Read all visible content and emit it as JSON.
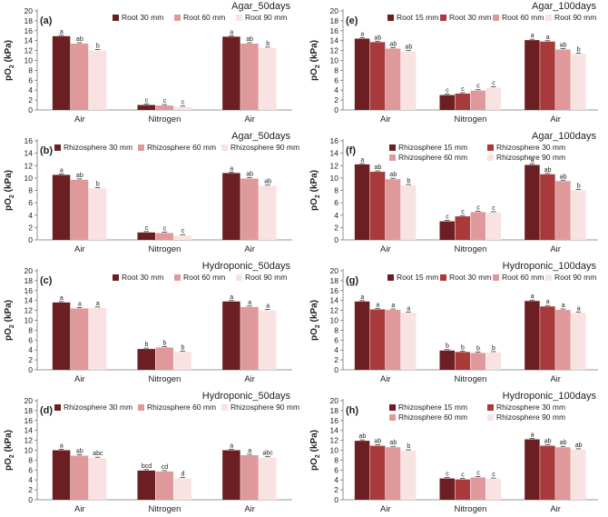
{
  "figure": {
    "colors": {
      "s1": "#6b1f22",
      "s2": "#a83a3c",
      "s3": "#e0999b",
      "s4": "#f8e2e2"
    },
    "axis_label_main": "pO",
    "axis_label_sub": "2",
    "axis_label_unit": " (kPa)"
  },
  "chart_data": [
    {
      "panel": "(a)",
      "title": "Agar_50days",
      "type": "bar",
      "categories": [
        "Air",
        "Nitrogen",
        "Air"
      ],
      "ylim": [
        0,
        20
      ],
      "yticks": [
        0,
        2,
        4,
        6,
        8,
        10,
        12,
        14,
        16,
        18,
        20
      ],
      "legend_rows": [
        [
          0,
          1,
          2
        ]
      ],
      "series": [
        {
          "name": "Root 30 mm",
          "color": "s1",
          "values": [
            14.9,
            1.0,
            14.8
          ],
          "labels": [
            "a",
            "c",
            "a"
          ]
        },
        {
          "name": "Root 60 mm",
          "color": "s3",
          "values": [
            13.4,
            0.9,
            13.4
          ],
          "labels": [
            "ab",
            "c",
            "ab"
          ]
        },
        {
          "name": "Root 90 mm",
          "color": "s4",
          "values": [
            12.0,
            0.6,
            12.5
          ],
          "labels": [
            "b",
            "c",
            "b"
          ]
        }
      ]
    },
    {
      "panel": "(e)",
      "title": "Agar_100days",
      "type": "bar",
      "categories": [
        "Air",
        "Nitrogen",
        "Air"
      ],
      "ylim": [
        0,
        20
      ],
      "yticks": [
        0,
        2,
        4,
        6,
        8,
        10,
        12,
        14,
        16,
        18,
        20
      ],
      "legend_rows": [
        [
          0,
          1,
          2,
          3
        ]
      ],
      "series": [
        {
          "name": "Root 15 mm",
          "color": "s1",
          "values": [
            14.4,
            3.0,
            14.1
          ],
          "labels": [
            "a",
            "c",
            "a"
          ]
        },
        {
          "name": "Root 30 mm",
          "color": "s2",
          "values": [
            13.7,
            3.3,
            13.8
          ],
          "labels": [
            "ab",
            "c",
            "a"
          ]
        },
        {
          "name": "Root 60 mm",
          "color": "s3",
          "values": [
            12.4,
            3.9,
            12.2
          ],
          "labels": [
            "ab",
            "c",
            "ab"
          ]
        },
        {
          "name": "Root 90 mm",
          "color": "s4",
          "values": [
            11.8,
            4.5,
            11.3
          ],
          "labels": [
            "ab",
            "c",
            "b"
          ]
        }
      ]
    },
    {
      "panel": "(b)",
      "title": "Agar_50days",
      "type": "bar",
      "categories": [
        "Air",
        "Nitrogen",
        "Air"
      ],
      "ylim": [
        0,
        16
      ],
      "yticks": [
        0,
        2,
        4,
        6,
        8,
        10,
        12,
        14,
        16
      ],
      "legend_rows": [
        [
          0,
          1,
          2
        ]
      ],
      "series": [
        {
          "name": "Rhizosphere 30 mm",
          "color": "s1",
          "values": [
            10.5,
            1.2,
            10.8
          ],
          "labels": [
            "a",
            "c",
            "a"
          ]
        },
        {
          "name": "Rhizosphere 60 mm",
          "color": "s3",
          "values": [
            9.7,
            1.1,
            9.9
          ],
          "labels": [
            "ab",
            "c",
            "ab"
          ]
        },
        {
          "name": "Rhizosphere 90 mm",
          "color": "s4",
          "values": [
            8.3,
            0.7,
            8.7
          ],
          "labels": [
            "b",
            "c",
            "ab"
          ]
        }
      ]
    },
    {
      "panel": "(f)",
      "title": "Agar_100days",
      "type": "bar",
      "categories": [
        "Air",
        "Nitrogen",
        "Air"
      ],
      "ylim": [
        0,
        16
      ],
      "yticks": [
        0,
        2,
        4,
        6,
        8,
        10,
        12,
        14,
        16
      ],
      "legend_rows": [
        [
          0,
          1
        ],
        [
          2,
          3
        ]
      ],
      "series": [
        {
          "name": "Rhizosphere 15 mm",
          "color": "s1",
          "values": [
            12.2,
            3.0,
            12.1
          ],
          "labels": [
            "a",
            "c",
            "a"
          ]
        },
        {
          "name": "Rhizosphere 30 mm",
          "color": "s2",
          "values": [
            11.0,
            3.8,
            10.6
          ],
          "labels": [
            "ab",
            "c",
            "ab"
          ]
        },
        {
          "name": "Rhizosphere 60 mm",
          "color": "s3",
          "values": [
            9.8,
            4.5,
            9.5
          ],
          "labels": [
            "ab",
            "c",
            "ab"
          ]
        },
        {
          "name": "Rhizosphere 90 mm",
          "color": "s4",
          "values": [
            8.8,
            4.4,
            8.0
          ],
          "labels": [
            "b",
            "c",
            "b"
          ]
        }
      ]
    },
    {
      "panel": "(c)",
      "title": "Hydroponic_50days",
      "type": "bar",
      "categories": [
        "Air",
        "Nitrogen",
        "Air"
      ],
      "ylim": [
        0,
        20
      ],
      "yticks": [
        0,
        2,
        4,
        6,
        8,
        10,
        12,
        14,
        16,
        18,
        20
      ],
      "legend_rows": [
        [
          0,
          1,
          2
        ]
      ],
      "series": [
        {
          "name": "Root 30 mm",
          "color": "s1",
          "values": [
            13.6,
            4.2,
            13.8
          ],
          "labels": [
            "a",
            "b",
            "a"
          ]
        },
        {
          "name": "Root 60 mm",
          "color": "s3",
          "values": [
            12.4,
            4.5,
            12.7
          ],
          "labels": [
            "a",
            "b",
            "a"
          ]
        },
        {
          "name": "Root 90 mm",
          "color": "s4",
          "values": [
            12.5,
            3.6,
            12.0
          ],
          "labels": [
            "a",
            "b",
            "a"
          ]
        }
      ]
    },
    {
      "panel": "(g)",
      "title": "Hydroponic_100days",
      "type": "bar",
      "categories": [
        "Air",
        "Nitrogen",
        "Air"
      ],
      "ylim": [
        0,
        20
      ],
      "yticks": [
        0,
        2,
        4,
        6,
        8,
        10,
        12,
        14,
        16,
        18,
        20
      ],
      "legend_rows": [
        [
          0,
          1,
          2,
          3
        ]
      ],
      "series": [
        {
          "name": "Root 15 mm",
          "color": "s1",
          "values": [
            13.8,
            3.9,
            13.9
          ],
          "labels": [
            "a",
            "b",
            "a"
          ]
        },
        {
          "name": "Root 30 mm",
          "color": "s2",
          "values": [
            12.2,
            3.6,
            12.8
          ],
          "labels": [
            "a",
            "b",
            "a"
          ]
        },
        {
          "name": "Root 60 mm",
          "color": "s3",
          "values": [
            12.1,
            3.4,
            12.1
          ],
          "labels": [
            "a",
            "b",
            "a"
          ]
        },
        {
          "name": "Root 90 mm",
          "color": "s4",
          "values": [
            11.5,
            3.5,
            11.5
          ],
          "labels": [
            "a",
            "b",
            "a"
          ]
        }
      ]
    },
    {
      "panel": "(d)",
      "title": "Hydroponic_50days",
      "type": "bar",
      "categories": [
        "Air",
        "Nitrogen",
        "Air"
      ],
      "ylim": [
        0,
        20
      ],
      "yticks": [
        0,
        2,
        4,
        6,
        8,
        10,
        12,
        14,
        16,
        18,
        20
      ],
      "legend_rows": [
        [
          0,
          1,
          2
        ]
      ],
      "series": [
        {
          "name": "Rhizosphere 30 mm",
          "color": "s1",
          "values": [
            10.0,
            5.9,
            10.0
          ],
          "labels": [
            "a",
            "bcd",
            "a"
          ]
        },
        {
          "name": "Rhizosphere 60 mm",
          "color": "s3",
          "values": [
            8.9,
            5.7,
            9.0
          ],
          "labels": [
            "ab",
            "cd",
            "a"
          ]
        },
        {
          "name": "Rhizosphere 90 mm",
          "color": "s4",
          "values": [
            8.4,
            4.3,
            8.5
          ],
          "labels": [
            "abc",
            "d",
            "abc"
          ]
        }
      ]
    },
    {
      "panel": "(h)",
      "title": "Hydroponic_100days",
      "type": "bar",
      "categories": [
        "Air",
        "Nitrogen",
        "Air"
      ],
      "ylim": [
        0,
        20
      ],
      "yticks": [
        0,
        2,
        4,
        6,
        8,
        10,
        12,
        14,
        16,
        18,
        20
      ],
      "legend_rows": [
        [
          0,
          1
        ],
        [
          2,
          3
        ]
      ],
      "series": [
        {
          "name": "Rhizosphere 15 mm",
          "color": "s1",
          "values": [
            11.9,
            4.3,
            12.2
          ],
          "labels": [
            "ab",
            "c",
            "a"
          ]
        },
        {
          "name": "Rhizosphere 30 mm",
          "color": "s2",
          "values": [
            10.9,
            4.1,
            10.9
          ],
          "labels": [
            "ab",
            "c",
            "ab"
          ]
        },
        {
          "name": "Rhizosphere 60 mm",
          "color": "s3",
          "values": [
            10.6,
            4.5,
            10.6
          ],
          "labels": [
            "ab",
            "c",
            "ab"
          ]
        },
        {
          "name": "Rhizosphere 90 mm",
          "color": "s4",
          "values": [
            9.9,
            4.2,
            10.1
          ],
          "labels": [
            "b",
            "c",
            "ab"
          ]
        }
      ]
    }
  ]
}
